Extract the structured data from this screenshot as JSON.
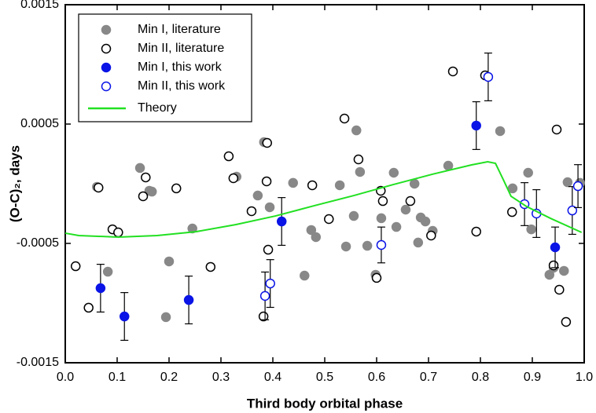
{
  "chart_data": {
    "type": "scatter",
    "xlabel": "Third body orbital phase",
    "ylabel": "(O-C)₂, days",
    "xlim": [
      0,
      1
    ],
    "ylim": [
      -0.0015,
      0.0015
    ],
    "xticks": [
      {
        "value": 0,
        "label": "0.0"
      },
      0.1,
      0.2,
      0.3,
      0.4,
      0.5,
      0.6,
      0.7,
      0.8,
      0.9,
      {
        "value": 1,
        "label": "1.0"
      }
    ],
    "yticks": [
      -0.0015,
      -0.0005,
      0.0005,
      0.0015
    ],
    "legend": "upper left",
    "series": [
      {
        "name": "Min I, literature",
        "color": "#888888",
        "marker": "filled",
        "x": [
          0.061,
          0.082,
          0.144,
          0.162,
          0.167,
          0.194,
          0.2,
          0.245,
          0.33,
          0.371,
          0.383,
          0.394,
          0.439,
          0.461,
          0.474,
          0.483,
          0.529,
          0.541,
          0.556,
          0.561,
          0.568,
          0.582,
          0.598,
          0.609,
          0.633,
          0.638,
          0.656,
          0.673,
          0.68,
          0.685,
          0.694,
          0.708,
          0.738,
          0.838,
          0.862,
          0.892,
          0.898,
          0.933,
          0.941,
          0.961,
          0.968,
          0.992
        ],
        "values": [
          -2.6e-05,
          -0.000737,
          0.000132,
          -5.9e-05,
          -6.6e-05,
          -0.001118,
          -0.000651,
          -0.000375,
          5.9e-05,
          -9.9e-05,
          0.000349,
          -0.000197,
          7e-06,
          -0.00077,
          -0.000388,
          -0.000447,
          -1.3e-05,
          -0.000526,
          -0.00027,
          0.000447,
          9.9e-05,
          -0.00052,
          -0.000763,
          -0.000289,
          9.2e-05,
          -0.000362,
          -0.000217,
          0,
          -0.000493,
          -0.000283,
          -0.000316,
          -0.000395,
          0.000151,
          0.000441,
          -3.9e-05,
          9.2e-05,
          -0.000382,
          -0.000763,
          -0.000704,
          -0.00073,
          1.3e-05,
          7e-06
        ]
      },
      {
        "name": "Min II, literature",
        "color": "#000000",
        "marker": "open",
        "x": [
          0.02,
          0.064,
          0.045,
          0.091,
          0.102,
          0.155,
          0.15,
          0.214,
          0.28,
          0.315,
          0.324,
          0.359,
          0.382,
          0.388,
          0.389,
          0.391,
          0.476,
          0.508,
          0.538,
          0.6,
          0.608,
          0.612,
          0.565,
          0.665,
          0.705,
          0.747,
          0.792,
          0.809,
          0.861,
          0.947,
          0.941,
          0.952,
          0.965
        ],
        "values": [
          -0.000691,
          -3.3e-05,
          -0.001039,
          -0.000382,
          -0.000408,
          5.3e-05,
          -0.000105,
          -3.9e-05,
          -0.000697,
          0.00023,
          4.6e-05,
          -0.00023,
          -0.001112,
          2e-05,
          0.000342,
          -0.000553,
          -1.3e-05,
          -0.000296,
          0.000546,
          -0.000789,
          -5.9e-05,
          -0.000145,
          0.000204,
          -0.000145,
          -0.000434,
          0.000941,
          -0.000401,
          0.000908,
          -0.000237,
          0.000454,
          -0.000684,
          -0.000888,
          -0.001158
        ]
      },
      {
        "name": "Min I, this work",
        "color": "#0a14e6",
        "marker": "filled",
        "x": [
          0.068,
          0.114,
          0.238,
          0.417,
          0.792,
          0.944
        ],
        "values": [
          -0.000875,
          -0.001112,
          -0.000974,
          -0.000316,
          0.000487,
          -0.000533
        ],
        "errors": [
          0.0002,
          0.0002,
          0.0002,
          0.0002,
          0.0002,
          0.00017
        ]
      },
      {
        "name": "Min II, this work",
        "color": "#0a14e6",
        "marker": "open",
        "x": [
          0.385,
          0.395,
          0.609,
          0.815,
          0.885,
          0.908,
          0.977,
          0.988
        ],
        "values": [
          -0.00094,
          -0.000836,
          -0.000513,
          0.000895,
          -0.000171,
          -0.00025,
          -0.000224,
          -2e-05
        ],
        "errors": [
          0.0002,
          0.0002,
          0.00015,
          0.0002,
          0.00018,
          0.0002,
          0.0002,
          0.00018
        ]
      },
      {
        "name": "Theory",
        "color": "#22e022",
        "marker": "line",
        "x": [
          0,
          0.026,
          0.102,
          0.177,
          0.253,
          0.329,
          0.405,
          0.48,
          0.556,
          0.632,
          0.708,
          0.783,
          0.814,
          0.829,
          0.845,
          0.859,
          0.889,
          0.935,
          0.995
        ],
        "values": [
          -0.000414,
          -0.000434,
          -0.000447,
          -0.000434,
          -0.000401,
          -0.000342,
          -0.00027,
          -0.000184,
          -9.9e-05,
          -7e-06,
          8e-05,
          0.000158,
          0.000184,
          0.000171,
          2.6e-05,
          -0.000105,
          -0.000191,
          -0.00029,
          -0.000408
        ]
      }
    ]
  }
}
